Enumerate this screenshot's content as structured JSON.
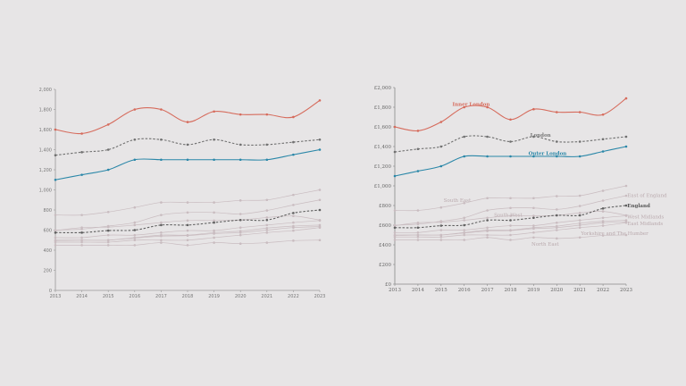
{
  "chart_data": [
    {
      "type": "line",
      "title": "",
      "xlabel": "",
      "ylabel": "",
      "x": [
        2013,
        2014,
        2015,
        2016,
        2017,
        2018,
        2019,
        2020,
        2021,
        2022,
        2023
      ],
      "xlim": [
        2013,
        2023
      ],
      "ylim": [
        0,
        2000
      ],
      "yticks": [
        0,
        200,
        400,
        600,
        800,
        1000,
        1200,
        1400,
        1600,
        1800,
        2000
      ],
      "ytick_labels": [
        "0",
        "200",
        "400",
        "600",
        "800",
        "1,000",
        "1,200",
        "1,400",
        "1,600",
        "1,800",
        "2,000"
      ],
      "xtick_labels": [
        "2013",
        "2014",
        "2015",
        "2016",
        "2017",
        "2018",
        "2019",
        "2020",
        "2021",
        "2022",
        "2023"
      ],
      "grid": false,
      "legend": "none",
      "series_labels_shown": false
    },
    {
      "type": "line",
      "title": "",
      "xlabel": "",
      "ylabel": "",
      "x": [
        2013,
        2014,
        2015,
        2016,
        2017,
        2018,
        2019,
        2020,
        2021,
        2022,
        2023
      ],
      "xlim": [
        2013,
        2023
      ],
      "ylim": [
        0,
        2000
      ],
      "yticks": [
        0,
        200,
        400,
        600,
        800,
        1000,
        1200,
        1400,
        1600,
        1800,
        2000
      ],
      "ytick_labels": [
        "£0",
        "£200",
        "£400",
        "£600",
        "£800",
        "£1,000",
        "£1,200",
        "£1,400",
        "£1,600",
        "£1,800",
        "£2,000"
      ],
      "xtick_labels": [
        "2013",
        "2014",
        "2015",
        "2016",
        "2017",
        "2018",
        "2019",
        "2020",
        "2021",
        "2022",
        "2023"
      ],
      "grid": false,
      "legend": "direct-labels",
      "series_labels_shown": true
    }
  ],
  "series": [
    {
      "name": "Inner London",
      "color": "#d66b5c",
      "dashed": false,
      "values": [
        1600,
        1560,
        1650,
        1800,
        1800,
        1675,
        1780,
        1750,
        1750,
        1725,
        1890
      ]
    },
    {
      "name": "London",
      "color": "#707070",
      "dashed": true,
      "values": [
        1345,
        1375,
        1400,
        1500,
        1500,
        1450,
        1500,
        1450,
        1450,
        1475,
        1500
      ]
    },
    {
      "name": "Outer London",
      "color": "#2a87a8",
      "dashed": false,
      "values": [
        1100,
        1150,
        1200,
        1300,
        1300,
        1300,
        1300,
        1300,
        1300,
        1350,
        1400
      ]
    },
    {
      "name": "South East",
      "color": "#c9bcc0",
      "dashed": false,
      "values": [
        750,
        750,
        780,
        825,
        875,
        875,
        875,
        895,
        900,
        950,
        1000
      ]
    },
    {
      "name": "East of England",
      "color": "#c9bcc0",
      "dashed": false,
      "values": [
        600,
        610,
        640,
        675,
        750,
        775,
        775,
        760,
        795,
        850,
        900
      ]
    },
    {
      "name": "South West",
      "color": "#c9bcc0",
      "dashed": false,
      "values": [
        595,
        625,
        630,
        650,
        675,
        695,
        695,
        700,
        725,
        740,
        700
      ]
    },
    {
      "name": "West Midlands",
      "color": "#c9bcc0",
      "dashed": false,
      "values": [
        525,
        525,
        550,
        550,
        575,
        595,
        595,
        625,
        650,
        675,
        695
      ]
    },
    {
      "name": "East Midlands",
      "color": "#c9bcc0",
      "dashed": false,
      "values": [
        500,
        500,
        500,
        525,
        550,
        550,
        575,
        590,
        620,
        640,
        650
      ]
    },
    {
      "name": "Yorkshire and The Humber",
      "color": "#c9bcc0",
      "dashed": false,
      "values": [
        495,
        500,
        500,
        520,
        540,
        545,
        565,
        575,
        600,
        625,
        635
      ]
    },
    {
      "name": "North West",
      "color": "#c9bcc0",
      "dashed": false,
      "values": [
        480,
        480,
        480,
        500,
        500,
        500,
        525,
        550,
        575,
        595,
        625
      ]
    },
    {
      "name": "North East",
      "color": "#c9bcc0",
      "dashed": false,
      "values": [
        450,
        450,
        450,
        450,
        475,
        450,
        475,
        465,
        475,
        495,
        500
      ]
    },
    {
      "name": "England",
      "color": "#606060",
      "dashed": true,
      "values": [
        575,
        575,
        595,
        600,
        650,
        650,
        675,
        700,
        700,
        770,
        800
      ]
    }
  ]
}
